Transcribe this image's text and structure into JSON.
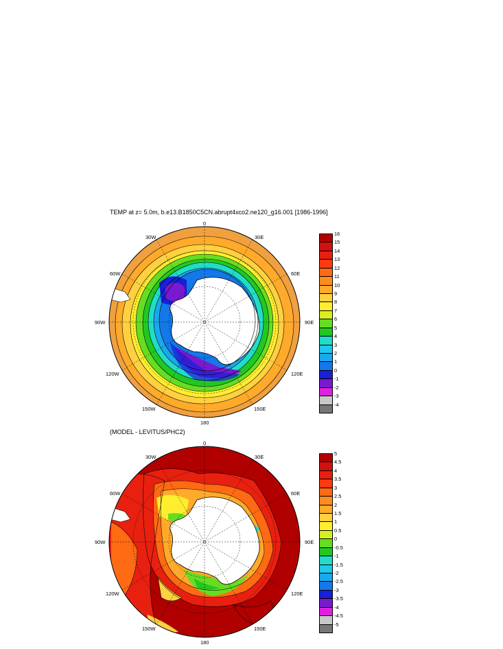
{
  "map1": {
    "title": "TEMP at z=   5.0m, b.e13.B1850C5CN.abrupt4xco2.ne120_g16.001 [1986-1996]",
    "lon_labels": {
      "top": "0",
      "tl": "30W",
      "tr": "30E",
      "l60": "60W",
      "r60": "60E",
      "l90": "90W",
      "r90": "90E",
      "l120": "120W",
      "r120": "120E",
      "bl": "150W",
      "br": "150E",
      "bottom": "180"
    },
    "colorbar_labels": [
      "16",
      "15",
      "14",
      "13",
      "12",
      "11",
      "10",
      "9",
      "8",
      "7",
      "6",
      "5",
      "4",
      "3",
      "2",
      "1",
      "0",
      "-1",
      "-2",
      "-3",
      "-4"
    ],
    "colorbar_colors": [
      "#b00000",
      "#d21010",
      "#e82010",
      "#ff3a10",
      "#ff6a14",
      "#ff8c20",
      "#ffaa2a",
      "#ffd040",
      "#ffee30",
      "#d6f020",
      "#66dd22",
      "#22c822",
      "#22dcc8",
      "#20c8ee",
      "#1aa8ee",
      "#1478e8",
      "#1820d8",
      "#7a1ad0",
      "#e020e0",
      "#c8c8c8",
      "#777777"
    ]
  },
  "map2": {
    "title": "(MODEL - LEVITUS/PHC2)",
    "lon_labels": {
      "top": "0",
      "tl": "30W",
      "tr": "30E",
      "l60": "60W",
      "r60": "60E",
      "l90": "90W",
      "r90": "90E",
      "l120": "120W",
      "r120": "120E",
      "bl": "150W",
      "br": "150E",
      "bottom": "180"
    },
    "colorbar_labels": [
      "5",
      "4.5",
      "4",
      "3.5",
      "3",
      "2.5",
      "2",
      "1.5",
      "1",
      "0.5",
      "0",
      "-0.5",
      "-1",
      "-1.5",
      "-2",
      "-2.5",
      "-3",
      "-3.5",
      "-4",
      "-4.5",
      "-5"
    ],
    "colorbar_colors": [
      "#b00000",
      "#d21010",
      "#e82010",
      "#ff3a10",
      "#ff6a14",
      "#ff8c20",
      "#ffaa2a",
      "#ffd040",
      "#ffee30",
      "#d6f020",
      "#66dd22",
      "#22c822",
      "#22dcc8",
      "#20c8ee",
      "#1aa8ee",
      "#1478e8",
      "#1820d8",
      "#7a1ad0",
      "#e020e0",
      "#c8c8c8",
      "#777777"
    ]
  }
}
